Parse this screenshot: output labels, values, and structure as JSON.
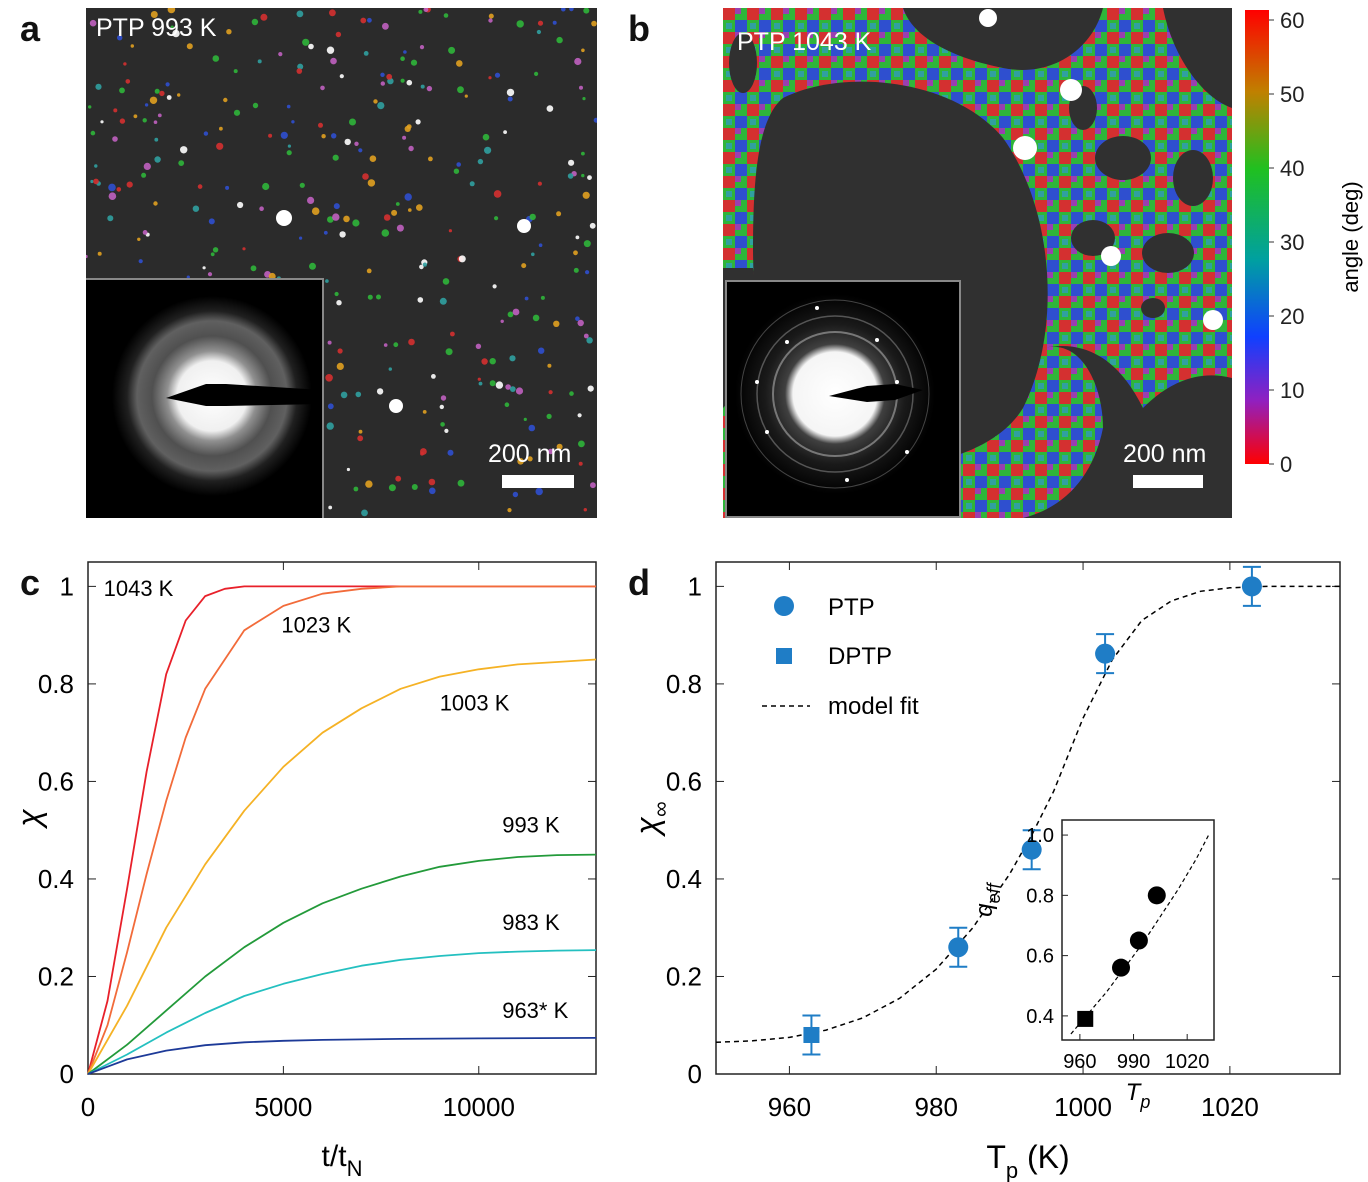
{
  "panels": {
    "a": {
      "letter": "a",
      "sample_label": "PTP 993 K",
      "scale_label": "200 nm"
    },
    "b": {
      "letter": "b",
      "sample_label": "PTP 1043 K",
      "scale_label": "200 nm"
    },
    "c": {
      "letter": "c"
    },
    "d": {
      "letter": "d"
    }
  },
  "colorbar": {
    "label": "angle (deg)",
    "ticks": [
      "60",
      "50",
      "40",
      "30",
      "20",
      "10",
      "0"
    ],
    "colors": [
      "#ff0000",
      "#ff8000",
      "#80c000",
      "#00c000",
      "#00a0a0",
      "#0000ff",
      "#8000c0",
      "#ff0000"
    ]
  },
  "chart_data": [
    {
      "type": "line",
      "panel": "c",
      "xlabel": "t/t",
      "xlabel_sub": "N",
      "ylabel": "χ",
      "xlim": [
        0,
        13000
      ],
      "ylim": [
        0,
        1.05
      ],
      "xticks": [
        0,
        5000,
        10000
      ],
      "yticks": [
        0,
        0.2,
        0.4,
        0.6,
        0.8,
        1
      ],
      "xtick_labels": [
        "0",
        "5000",
        "10000"
      ],
      "ytick_labels": [
        "0",
        "0.2",
        "0.4",
        "0.6",
        "0.8",
        "1"
      ],
      "series": [
        {
          "name": "1043 K",
          "color": "#e8202a",
          "x": [
            0,
            500,
            1000,
            1500,
            2000,
            2500,
            3000,
            3500,
            4000,
            5000,
            13000
          ],
          "y": [
            0,
            0.15,
            0.38,
            0.62,
            0.82,
            0.93,
            0.98,
            0.995,
            1.0,
            1.0,
            1.0
          ]
        },
        {
          "name": "1023 K",
          "color": "#f26b3a",
          "x": [
            0,
            500,
            1000,
            1500,
            2000,
            2500,
            3000,
            4000,
            5000,
            6000,
            7000,
            8000,
            13000
          ],
          "y": [
            0,
            0.1,
            0.25,
            0.41,
            0.56,
            0.69,
            0.79,
            0.91,
            0.96,
            0.985,
            0.995,
            1.0,
            1.0
          ]
        },
        {
          "name": "1003 K",
          "color": "#f5b225",
          "x": [
            0,
            1000,
            2000,
            3000,
            4000,
            5000,
            6000,
            7000,
            8000,
            9000,
            10000,
            11000,
            12000,
            13000
          ],
          "y": [
            0,
            0.14,
            0.3,
            0.43,
            0.54,
            0.63,
            0.7,
            0.75,
            0.79,
            0.815,
            0.83,
            0.84,
            0.845,
            0.85
          ]
        },
        {
          "name": "993 K",
          "color": "#239a3a",
          "x": [
            0,
            1000,
            2000,
            3000,
            4000,
            5000,
            6000,
            7000,
            8000,
            9000,
            10000,
            11000,
            12000,
            13000
          ],
          "y": [
            0,
            0.06,
            0.13,
            0.2,
            0.26,
            0.31,
            0.35,
            0.38,
            0.405,
            0.425,
            0.437,
            0.445,
            0.449,
            0.45
          ]
        },
        {
          "name": "983 K",
          "color": "#24c0c0",
          "x": [
            0,
            1000,
            2000,
            3000,
            4000,
            5000,
            6000,
            7000,
            8000,
            9000,
            10000,
            11000,
            12000,
            13000
          ],
          "y": [
            0,
            0.04,
            0.085,
            0.125,
            0.16,
            0.185,
            0.205,
            0.222,
            0.234,
            0.242,
            0.248,
            0.251,
            0.253,
            0.254
          ]
        },
        {
          "name": "963* K",
          "color": "#1d3a98",
          "x": [
            0,
            500,
            1000,
            2000,
            3000,
            4000,
            5000,
            6000,
            8000,
            10000,
            13000
          ],
          "y": [
            0,
            0.015,
            0.03,
            0.048,
            0.059,
            0.065,
            0.068,
            0.07,
            0.072,
            0.073,
            0.074
          ]
        }
      ],
      "label_anchor": [
        {
          "name": "1043 K",
          "x": 400,
          "y": 0.98
        },
        {
          "name": "1023 K",
          "x": 4950,
          "y": 0.905
        },
        {
          "name": "1003 K",
          "x": 9000,
          "y": 0.745
        },
        {
          "name": "993 K",
          "x": 10600,
          "y": 0.495
        },
        {
          "name": "983 K",
          "x": 10600,
          "y": 0.295
        },
        {
          "name": "963* K",
          "x": 10600,
          "y": 0.115
        }
      ]
    },
    {
      "type": "scatter",
      "panel": "d",
      "xlabel": "T",
      "xlabel_sub": "p",
      "xlabel_unit": " (K)",
      "ylabel": "χ",
      "ylabel_sub": "∞",
      "xlim": [
        950,
        1035
      ],
      "ylim": [
        0,
        1.05
      ],
      "xticks": [
        960,
        980,
        1000,
        1020
      ],
      "yticks": [
        0,
        0.2,
        0.4,
        0.6,
        0.8,
        1
      ],
      "xtick_labels": [
        "960",
        "980",
        "1000",
        "1020"
      ],
      "ytick_labels": [
        "0",
        "0.2",
        "0.4",
        "0.6",
        "0.8",
        "1"
      ],
      "legend": [
        "PTP",
        "DPTP",
        "model fit"
      ],
      "series": [
        {
          "name": "PTP",
          "marker": "circle",
          "color": "#1f7dc6",
          "x": [
            983,
            993,
            1003,
            1023
          ],
          "y": [
            0.26,
            0.46,
            0.862,
            1.0
          ],
          "err": [
            0.04,
            0.04,
            0.04,
            0.04
          ]
        },
        {
          "name": "DPTP",
          "marker": "square",
          "color": "#1f7dc6",
          "x": [
            963
          ],
          "y": [
            0.08
          ],
          "err": [
            0.04
          ]
        },
        {
          "name": "model fit",
          "style": "dashed",
          "color": "#000000",
          "x": [
            950,
            955,
            960,
            965,
            970,
            975,
            980,
            985,
            990,
            993,
            996,
            1000,
            1004,
            1008,
            1012,
            1016,
            1020,
            1025,
            1030,
            1035
          ],
          "y": [
            0.065,
            0.068,
            0.075,
            0.09,
            0.115,
            0.155,
            0.215,
            0.3,
            0.41,
            0.49,
            0.58,
            0.73,
            0.85,
            0.93,
            0.97,
            0.99,
            0.997,
            1.0,
            1.0,
            1.0
          ]
        }
      ],
      "inset": {
        "xlabel": "T",
        "xlabel_sub": "p",
        "ylabel": "q",
        "ylabel_sub": "eff",
        "xlim": [
          950,
          1035
        ],
        "ylim": [
          0.32,
          1.05
        ],
        "xticks": [
          960,
          990,
          1020
        ],
        "yticks": [
          0.4,
          0.6,
          0.8,
          1.0
        ],
        "xtick_labels": [
          "960",
          "990",
          "1020"
        ],
        "ytick_labels": [
          "0.4",
          "0.6",
          "0.8",
          "1.0"
        ],
        "series": [
          {
            "name": "PTP",
            "marker": "circle",
            "color": "#000000",
            "x": [
              983,
              993,
              1003
            ],
            "y": [
              0.56,
              0.65,
              0.8
            ]
          },
          {
            "name": "DPTP",
            "marker": "square",
            "color": "#000000",
            "x": [
              963
            ],
            "y": [
              0.39
            ]
          },
          {
            "name": "fit",
            "style": "dashed",
            "color": "#000000",
            "x": [
              955,
              965,
              975,
              985,
              995,
              1005,
              1015,
              1025,
              1032
            ],
            "y": [
              0.34,
              0.41,
              0.48,
              0.56,
              0.64,
              0.73,
              0.82,
              0.92,
              1.0
            ]
          }
        ]
      }
    }
  ]
}
